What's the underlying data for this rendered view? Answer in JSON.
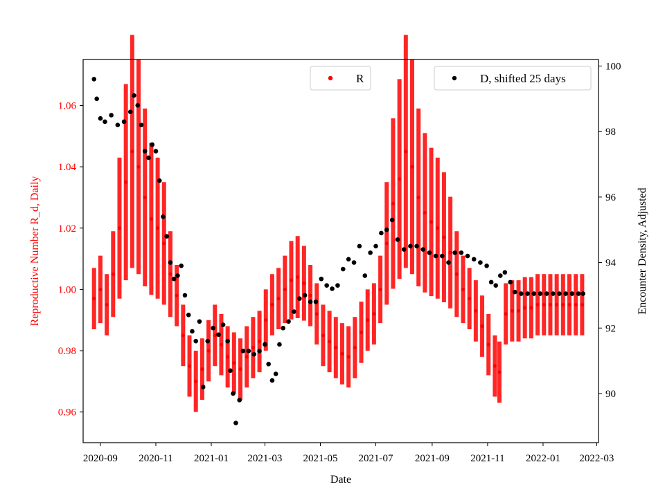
{
  "chart_data": {
    "type": "scatter",
    "xlabel": "Date",
    "ylabel_left": "Reproductive Number R_d, Daily",
    "ylabel_right": "Encounter Density, Adjusted",
    "x_ticks": [
      "2020-09",
      "2020-11",
      "2021-01",
      "2021-03",
      "2021-05",
      "2021-07",
      "2021-09",
      "2021-11",
      "2022-01",
      "2022-03"
    ],
    "y_left_ticks": [
      "0.96",
      "0.98",
      "1.00",
      "1.02",
      "1.04",
      "1.06"
    ],
    "y_right_ticks": [
      "90",
      "92",
      "94",
      "96",
      "98",
      "100"
    ],
    "x_range": [
      "2020-08-13",
      "2022-03-03"
    ],
    "y_left_range": [
      0.95,
      1.075
    ],
    "y_right_range": [
      88.5,
      100.2
    ],
    "colors": {
      "R": "#ff0000",
      "D": "#000000",
      "left_axis": "#ff0000"
    },
    "legend": [
      {
        "label": "R",
        "color": "#ff0000",
        "placement": "top-center"
      },
      {
        "label": "D, shifted 25 days",
        "color": "#000000",
        "placement": "top-right"
      }
    ],
    "series": [
      {
        "name": "R",
        "axis": "left",
        "marker": "dot-with-error-bars",
        "points": [
          [
            "2020-08-25",
            0.997
          ],
          [
            "2020-09-01",
            1.0
          ],
          [
            "2020-09-08",
            0.995
          ],
          [
            "2020-09-15",
            1.005
          ],
          [
            "2020-09-22",
            1.02
          ],
          [
            "2020-09-29",
            1.035
          ],
          [
            "2020-10-06",
            1.045
          ],
          [
            "2020-10-13",
            1.04
          ],
          [
            "2020-10-20",
            1.03
          ],
          [
            "2020-10-27",
            1.023
          ],
          [
            "2020-11-03",
            1.02
          ],
          [
            "2020-11-10",
            1.015
          ],
          [
            "2020-11-17",
            1.005
          ],
          [
            "2020-11-24",
            0.998
          ],
          [
            "2020-12-01",
            0.985
          ],
          [
            "2020-12-08",
            0.975
          ],
          [
            "2020-12-15",
            0.97
          ],
          [
            "2020-12-22",
            0.974
          ],
          [
            "2020-12-29",
            0.98
          ],
          [
            "2021-01-05",
            0.985
          ],
          [
            "2021-01-12",
            0.982
          ],
          [
            "2021-01-19",
            0.978
          ],
          [
            "2021-01-26",
            0.976
          ],
          [
            "2021-02-02",
            0.974
          ],
          [
            "2021-02-09",
            0.978
          ],
          [
            "2021-02-16",
            0.981
          ],
          [
            "2021-02-23",
            0.983
          ],
          [
            "2021-03-02",
            0.99
          ],
          [
            "2021-03-09",
            0.995
          ],
          [
            "2021-03-16",
            0.997
          ],
          [
            "2021-03-23",
            1.0
          ],
          [
            "2021-03-30",
            1.003
          ],
          [
            "2021-04-06",
            1.004
          ],
          [
            "2021-04-13",
            1.002
          ],
          [
            "2021-04-20",
            0.998
          ],
          [
            "2021-04-27",
            0.992
          ],
          [
            "2021-05-04",
            0.985
          ],
          [
            "2021-05-11",
            0.983
          ],
          [
            "2021-05-18",
            0.981
          ],
          [
            "2021-05-25",
            0.979
          ],
          [
            "2021-06-01",
            0.978
          ],
          [
            "2021-06-08",
            0.981
          ],
          [
            "2021-06-15",
            0.986
          ],
          [
            "2021-06-22",
            0.99
          ],
          [
            "2021-06-29",
            0.992
          ],
          [
            "2021-07-06",
            1.0
          ],
          [
            "2021-07-13",
            1.015
          ],
          [
            "2021-07-20",
            1.028
          ],
          [
            "2021-07-27",
            1.036
          ],
          [
            "2021-08-03",
            1.045
          ],
          [
            "2021-08-10",
            1.04
          ],
          [
            "2021-08-17",
            1.03
          ],
          [
            "2021-08-24",
            1.025
          ],
          [
            "2021-08-31",
            1.022
          ],
          [
            "2021-09-07",
            1.02
          ],
          [
            "2021-09-14",
            1.017
          ],
          [
            "2021-09-21",
            1.012
          ],
          [
            "2021-09-28",
            1.005
          ],
          [
            "2021-10-05",
            1.0
          ],
          [
            "2021-10-12",
            0.997
          ],
          [
            "2021-10-19",
            0.993
          ],
          [
            "2021-10-26",
            0.988
          ],
          [
            "2021-11-02",
            0.982
          ],
          [
            "2021-11-09",
            0.975
          ],
          [
            "2021-11-14",
            0.973
          ],
          [
            "2021-11-21",
            0.992
          ],
          [
            "2021-11-28",
            0.993
          ],
          [
            "2021-12-05",
            0.993
          ],
          [
            "2021-12-12",
            0.994
          ],
          [
            "2021-12-19",
            0.994
          ],
          [
            "2021-12-26",
            0.995
          ],
          [
            "2022-01-02",
            0.995
          ],
          [
            "2022-01-09",
            0.995
          ],
          [
            "2022-01-16",
            0.995
          ],
          [
            "2022-01-23",
            0.995
          ],
          [
            "2022-01-30",
            0.995
          ],
          [
            "2022-02-06",
            0.995
          ],
          [
            "2022-02-13",
            0.995
          ]
        ]
      },
      {
        "name": "D, shifted 25 days",
        "axis": "right",
        "marker": "dot",
        "points": [
          [
            "2020-08-25",
            99.6
          ],
          [
            "2020-08-28",
            99.0
          ],
          [
            "2020-09-01",
            98.4
          ],
          [
            "2020-09-06",
            98.3
          ],
          [
            "2020-09-13",
            98.5
          ],
          [
            "2020-09-20",
            98.2
          ],
          [
            "2020-09-27",
            98.3
          ],
          [
            "2020-10-04",
            98.6
          ],
          [
            "2020-10-08",
            99.1
          ],
          [
            "2020-10-12",
            98.8
          ],
          [
            "2020-10-16",
            98.2
          ],
          [
            "2020-10-20",
            97.4
          ],
          [
            "2020-10-24",
            97.2
          ],
          [
            "2020-10-28",
            97.6
          ],
          [
            "2020-11-01",
            97.4
          ],
          [
            "2020-11-05",
            96.5
          ],
          [
            "2020-11-09",
            95.4
          ],
          [
            "2020-11-13",
            94.8
          ],
          [
            "2020-11-17",
            94.0
          ],
          [
            "2020-11-21",
            93.5
          ],
          [
            "2020-11-25",
            93.6
          ],
          [
            "2020-11-29",
            93.9
          ],
          [
            "2020-12-03",
            93.0
          ],
          [
            "2020-12-07",
            92.4
          ],
          [
            "2020-12-11",
            91.9
          ],
          [
            "2020-12-15",
            91.6
          ],
          [
            "2020-12-19",
            92.2
          ],
          [
            "2020-12-23",
            90.2
          ],
          [
            "2020-12-28",
            91.6
          ],
          [
            "2021-01-03",
            92.0
          ],
          [
            "2021-01-09",
            91.8
          ],
          [
            "2021-01-14",
            92.1
          ],
          [
            "2021-01-19",
            91.6
          ],
          [
            "2021-01-22",
            90.7
          ],
          [
            "2021-01-25",
            90.0
          ],
          [
            "2021-01-28",
            89.1
          ],
          [
            "2021-02-01",
            89.8
          ],
          [
            "2021-02-05",
            91.3
          ],
          [
            "2021-02-11",
            91.3
          ],
          [
            "2021-02-17",
            91.2
          ],
          [
            "2021-02-23",
            91.3
          ],
          [
            "2021-03-01",
            91.5
          ],
          [
            "2021-03-05",
            90.9
          ],
          [
            "2021-03-09",
            90.4
          ],
          [
            "2021-03-13",
            90.6
          ],
          [
            "2021-03-17",
            91.5
          ],
          [
            "2021-03-21",
            92.0
          ],
          [
            "2021-03-27",
            92.2
          ],
          [
            "2021-04-02",
            92.5
          ],
          [
            "2021-04-08",
            92.9
          ],
          [
            "2021-04-14",
            93.0
          ],
          [
            "2021-04-20",
            92.8
          ],
          [
            "2021-04-26",
            92.8
          ],
          [
            "2021-05-02",
            93.5
          ],
          [
            "2021-05-08",
            93.3
          ],
          [
            "2021-05-14",
            93.2
          ],
          [
            "2021-05-20",
            93.3
          ],
          [
            "2021-05-26",
            93.8
          ],
          [
            "2021-06-01",
            94.1
          ],
          [
            "2021-06-07",
            94.0
          ],
          [
            "2021-06-13",
            94.5
          ],
          [
            "2021-06-19",
            93.6
          ],
          [
            "2021-06-25",
            94.3
          ],
          [
            "2021-07-01",
            94.5
          ],
          [
            "2021-07-07",
            94.9
          ],
          [
            "2021-07-13",
            95.0
          ],
          [
            "2021-07-19",
            95.3
          ],
          [
            "2021-07-25",
            94.7
          ],
          [
            "2021-08-01",
            94.4
          ],
          [
            "2021-08-08",
            94.5
          ],
          [
            "2021-08-15",
            94.5
          ],
          [
            "2021-08-22",
            94.4
          ],
          [
            "2021-08-29",
            94.3
          ],
          [
            "2021-09-05",
            94.2
          ],
          [
            "2021-09-12",
            94.2
          ],
          [
            "2021-09-19",
            94.0
          ],
          [
            "2021-09-26",
            94.3
          ],
          [
            "2021-10-03",
            94.3
          ],
          [
            "2021-10-10",
            94.2
          ],
          [
            "2021-10-17",
            94.1
          ],
          [
            "2021-10-24",
            94.0
          ],
          [
            "2021-10-31",
            93.9
          ],
          [
            "2021-11-05",
            93.4
          ],
          [
            "2021-11-10",
            93.3
          ],
          [
            "2021-11-15",
            93.6
          ],
          [
            "2021-11-20",
            93.7
          ],
          [
            "2021-11-26",
            93.4
          ],
          [
            "2021-12-01",
            93.1
          ],
          [
            "2021-12-08",
            93.05
          ],
          [
            "2021-12-15",
            93.05
          ],
          [
            "2021-12-22",
            93.05
          ],
          [
            "2021-12-29",
            93.05
          ],
          [
            "2022-01-05",
            93.05
          ],
          [
            "2022-01-12",
            93.05
          ],
          [
            "2022-01-19",
            93.05
          ],
          [
            "2022-01-26",
            93.05
          ],
          [
            "2022-02-02",
            93.05
          ],
          [
            "2022-02-09",
            93.05
          ],
          [
            "2022-02-14",
            93.05
          ]
        ]
      }
    ]
  }
}
